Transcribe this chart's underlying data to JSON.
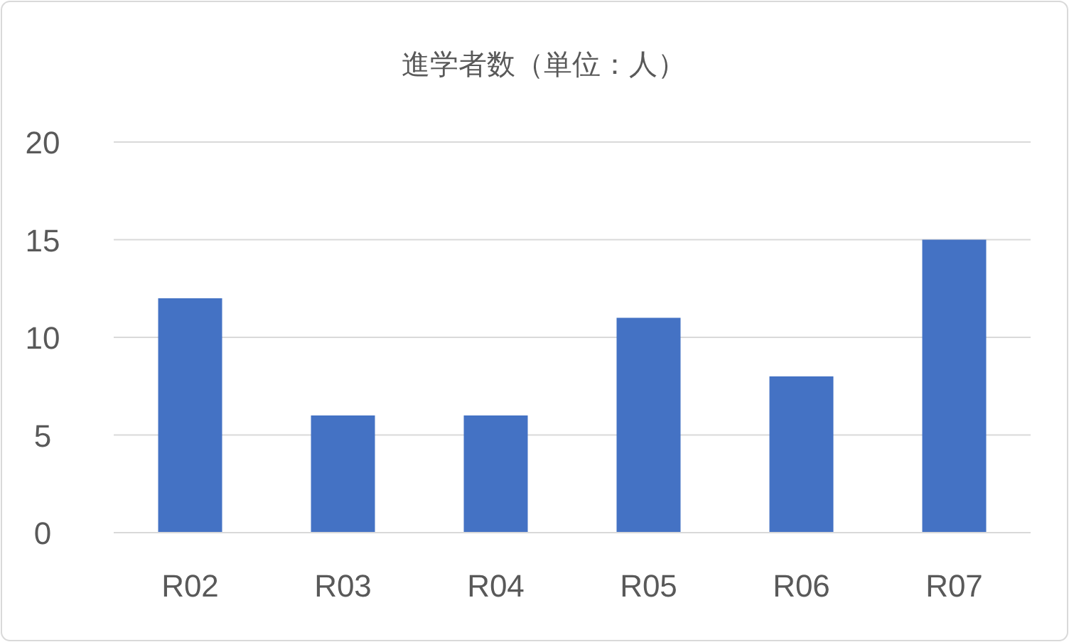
{
  "chart_data": {
    "type": "bar",
    "title": "進学者数（単位：人）",
    "categories": [
      "R02",
      "R03",
      "R04",
      "R05",
      "R06",
      "R07"
    ],
    "values": [
      12,
      6,
      6,
      11,
      8,
      15
    ],
    "color": "#4472c4",
    "ylim": [
      0,
      20
    ],
    "yticks": [
      0,
      5,
      10,
      15,
      20
    ],
    "grid": "y"
  }
}
